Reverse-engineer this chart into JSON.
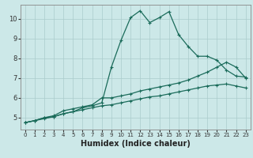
{
  "title": "",
  "xlabel": "Humidex (Indice chaleur)",
  "bg_color": "#cce8e8",
  "line_color": "#1a6b5a",
  "grid_color": "#aacccc",
  "xlim": [
    -0.5,
    23.5
  ],
  "ylim": [
    4.4,
    10.7
  ],
  "xticks": [
    0,
    1,
    2,
    3,
    4,
    5,
    6,
    7,
    8,
    9,
    10,
    11,
    12,
    13,
    14,
    15,
    16,
    17,
    18,
    19,
    20,
    21,
    22,
    23
  ],
  "yticks": [
    5,
    6,
    7,
    8,
    9,
    10
  ],
  "line1_x": [
    0,
    1,
    2,
    3,
    4,
    5,
    6,
    7,
    8,
    9,
    10,
    11,
    12,
    13,
    14,
    15,
    16,
    17,
    18,
    19,
    20,
    21,
    22,
    23
  ],
  "line1_y": [
    4.75,
    4.85,
    4.95,
    5.05,
    5.2,
    5.3,
    5.5,
    5.6,
    5.75,
    7.55,
    8.9,
    10.05,
    10.4,
    9.8,
    10.05,
    10.35,
    9.2,
    8.6,
    8.1,
    8.1,
    7.9,
    7.4,
    7.1,
    7.05
  ],
  "line2_x": [
    0,
    1,
    2,
    3,
    4,
    5,
    6,
    7,
    8,
    9,
    10,
    11,
    12,
    13,
    14,
    15,
    16,
    17,
    18,
    19,
    20,
    21,
    22,
    23
  ],
  "line2_y": [
    4.75,
    4.85,
    5.0,
    5.1,
    5.35,
    5.45,
    5.55,
    5.65,
    6.0,
    6.0,
    6.1,
    6.2,
    6.35,
    6.45,
    6.55,
    6.65,
    6.75,
    6.9,
    7.1,
    7.3,
    7.55,
    7.8,
    7.55,
    7.0
  ],
  "line3_x": [
    0,
    1,
    2,
    3,
    4,
    5,
    6,
    7,
    8,
    9,
    10,
    11,
    12,
    13,
    14,
    15,
    16,
    17,
    18,
    19,
    20,
    21,
    22,
    23
  ],
  "line3_y": [
    4.75,
    4.85,
    5.0,
    5.05,
    5.2,
    5.3,
    5.4,
    5.5,
    5.6,
    5.65,
    5.75,
    5.85,
    5.95,
    6.05,
    6.1,
    6.2,
    6.3,
    6.4,
    6.5,
    6.6,
    6.65,
    6.7,
    6.6,
    6.5
  ],
  "xlabel_fontsize": 7,
  "tick_fontsize": 5,
  "lw": 0.9,
  "markersize": 3
}
